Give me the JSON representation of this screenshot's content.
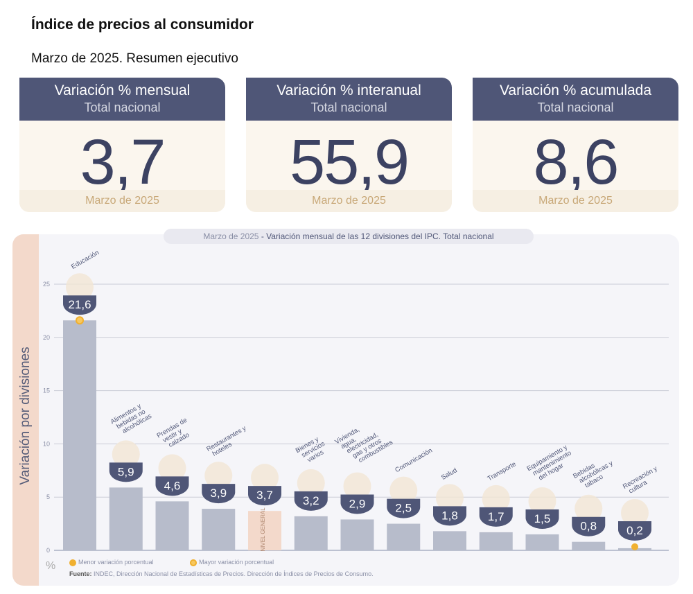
{
  "header": {
    "title": "Índice de precios al consumidor",
    "subtitle": "Marzo de 2025. Resumen ejecutivo"
  },
  "cards": [
    {
      "title": "Variación % mensual",
      "scope": "Total nacional",
      "value": "3,7",
      "period": "Marzo de 2025"
    },
    {
      "title": "Variación % interanual",
      "scope": "Total nacional",
      "value": "55,9",
      "period": "Marzo de 2025"
    },
    {
      "title": "Variación % acumulada",
      "scope": "Total nacional",
      "value": "8,6",
      "period": "Marzo de 2025"
    }
  ],
  "chart_data": {
    "type": "bar",
    "title_prefix": "Marzo de 2025",
    "title": " - Variación mensual de las 12 divisiones del IPC. Total nacional",
    "ylabel": "Variación por divisiones",
    "yunit": "%",
    "ylim": [
      0,
      25
    ],
    "yticks": [
      0,
      5,
      10,
      15,
      20,
      25
    ],
    "grid": true,
    "categories": [
      "Educación",
      "Alimentos y bebidas no alcohólicas",
      "Prendas de vestir y calzado",
      "Restaurantes y hoteles",
      "NIVEL GENERAL",
      "Bienes y servicios varios",
      "Vivienda, agua, electricidad, gas y otros combustibles",
      "Comunicación",
      "Salud",
      "Transporte",
      "Equipamiento y mantenimiento del hogar",
      "Bebidas alcohólicas y tabaco",
      "Recreación y cultura"
    ],
    "values": [
      21.6,
      5.9,
      4.6,
      3.9,
      3.7,
      3.2,
      2.9,
      2.5,
      1.8,
      1.7,
      1.5,
      0.8,
      0.2
    ],
    "value_labels": [
      "21,6",
      "5,9",
      "4,6",
      "3,9",
      "3,7",
      "3,2",
      "2,9",
      "2,5",
      "1,8",
      "1,7",
      "1,5",
      "0,8",
      "0,2"
    ],
    "highlight_index": 4,
    "colors": {
      "bar": "#b7bccb",
      "general": "#f3d9cb",
      "badge": "#4f5677",
      "marker": "#f0b030"
    },
    "legend": {
      "min": "Menor variación porcentual",
      "max": "Mayor variación porcentual"
    },
    "source_label": "Fuente:",
    "source": " INDEC, Dirección Nacional de Estadísticas de Precios. Dirección de Índices de Precios de Consumo."
  }
}
